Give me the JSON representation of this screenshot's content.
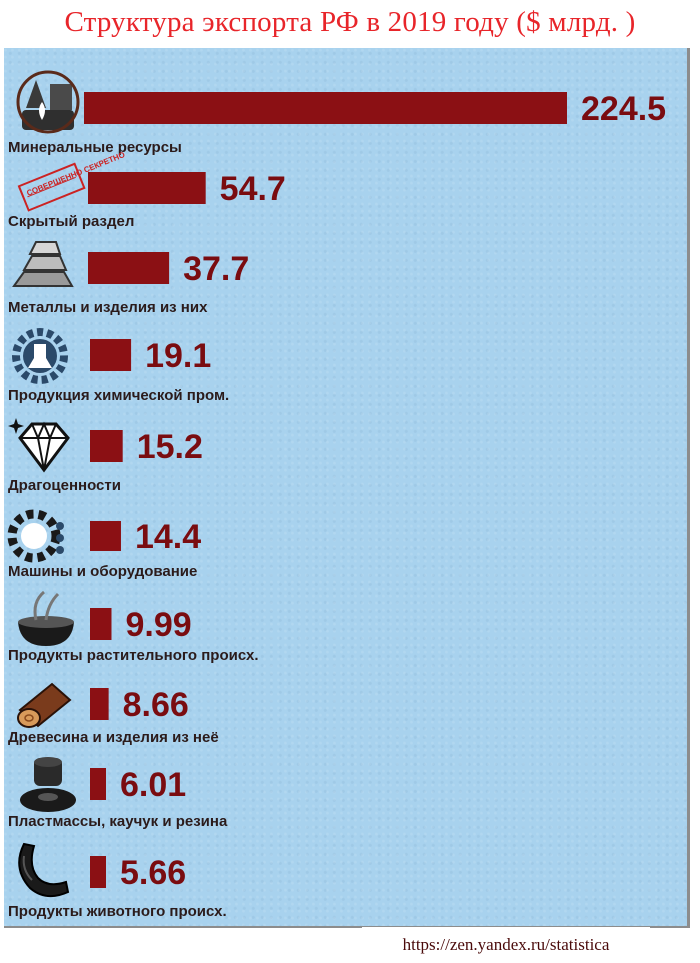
{
  "title": "Структура экспорта РФ в 2019 году ($ млрд. )",
  "source": "https://zen.yandex.ru/statistica",
  "colors": {
    "bar": "#8b1014",
    "value": "#7a0c10",
    "title": "#e8252a",
    "panel": "#a8d2ee"
  },
  "chart_data": {
    "type": "bar",
    "orientation": "horizontal",
    "title": "Структура экспорта РФ в 2019 году ($ млрд. )",
    "unit": "$ млрд.",
    "grid": false,
    "legend": "none",
    "categories": [
      "Минеральные ресурсы",
      "Скрытый раздел",
      "Металлы и изделия из них",
      "Продукция химической пром.",
      "Драгоценности",
      "Машины и оборудование",
      "Продукты растительного происх.",
      "Древесина и изделия из неё",
      "Пластмассы, каучук и резина",
      "Продукты животного происх."
    ],
    "values": [
      224.5,
      54.7,
      37.7,
      19.1,
      15.2,
      14.4,
      9.99,
      8.66,
      6.01,
      5.66
    ],
    "value_labels": [
      "224.5",
      "54.7",
      "37.7",
      "19.1",
      "15.2",
      "14.4",
      "9.99",
      "8.66",
      "6.01",
      "5.66"
    ],
    "icons": [
      "oil-drop-icon",
      "classified-stamp-icon",
      "metal-ingot-icon",
      "chemical-gear-icon",
      "diamond-icon",
      "machine-gear-icon",
      "grain-bowl-icon",
      "wood-log-icon",
      "rubber-tire-icon",
      "sausage-icon"
    ],
    "stamp_text": "СОВЕРШЕННО СЕКРЕТНО"
  }
}
